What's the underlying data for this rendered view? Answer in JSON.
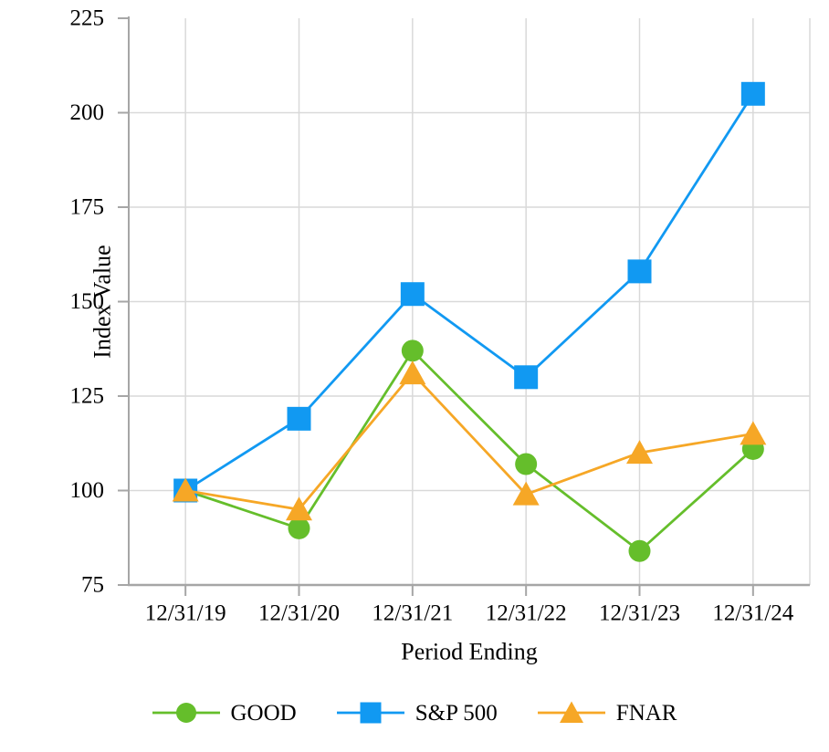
{
  "chart_data": {
    "type": "line",
    "title": "",
    "xlabel": "Period Ending",
    "ylabel": "Index Value",
    "categories": [
      "12/31/19",
      "12/31/20",
      "12/31/21",
      "12/31/22",
      "12/31/23",
      "12/31/24"
    ],
    "series": [
      {
        "name": "GOOD",
        "marker": "circle",
        "color": "#65BE2B",
        "values": [
          100,
          90,
          137,
          107,
          84,
          111
        ]
      },
      {
        "name": "S&P 500",
        "marker": "square",
        "color": "#1199F2",
        "values": [
          100,
          119,
          152,
          130,
          158,
          205
        ]
      },
      {
        "name": "FNAR",
        "marker": "triangle",
        "color": "#F6A726",
        "values": [
          100,
          95,
          131,
          99,
          110,
          115
        ]
      }
    ],
    "ylim": [
      75,
      225
    ],
    "yticks": [
      75,
      100,
      125,
      150,
      175,
      200,
      225
    ],
    "grid": true,
    "legend_position": "bottom"
  },
  "style": {
    "background": "#FFFFFF",
    "gridline_color": "#D9D9D9",
    "axis_color": "#A6A6A6",
    "text_color": "#000000"
  }
}
